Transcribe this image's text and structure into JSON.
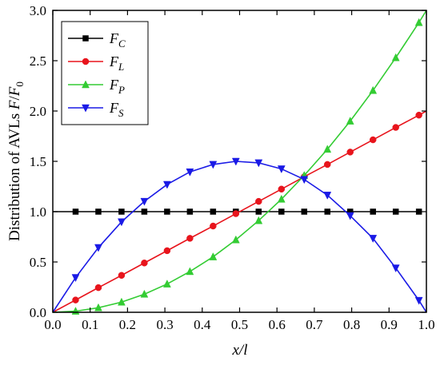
{
  "chart_data": {
    "type": "line",
    "xlabel": "x/l",
    "ylabel": "Distribution of AVLs F/F0",
    "xlim": [
      0.0,
      1.0
    ],
    "ylim": [
      0.0,
      3.0
    ],
    "xticks": [
      "0.0",
      "0.1",
      "0.2",
      "0.3",
      "0.4",
      "0.5",
      "0.6",
      "0.7",
      "0.8",
      "0.9",
      "1.0"
    ],
    "yticks": [
      "0.0",
      "0.5",
      "1.0",
      "1.5",
      "2.0",
      "2.5",
      "3.0"
    ],
    "grid": false,
    "legend_position": "top-left",
    "series": [
      {
        "name": "F_C",
        "color": "#000000",
        "marker": "square",
        "x": [
          0.0,
          0.061,
          0.122,
          0.184,
          0.245,
          0.306,
          0.367,
          0.429,
          0.49,
          0.551,
          0.612,
          0.673,
          0.735,
          0.796,
          0.857,
          0.918,
          0.98
        ],
        "y": [
          1.0,
          1.0,
          1.0,
          1.0,
          1.0,
          1.0,
          1.0,
          1.0,
          1.0,
          1.0,
          1.0,
          1.0,
          1.0,
          1.0,
          1.0,
          1.0,
          1.0
        ]
      },
      {
        "name": "F_L",
        "color": "#e8141c",
        "marker": "circle",
        "x": [
          0.0,
          0.061,
          0.122,
          0.184,
          0.245,
          0.306,
          0.367,
          0.429,
          0.49,
          0.551,
          0.612,
          0.673,
          0.735,
          0.796,
          0.857,
          0.918,
          0.98,
          1.0
        ],
        "y": [
          0.0,
          0.122,
          0.245,
          0.367,
          0.49,
          0.612,
          0.735,
          0.857,
          0.98,
          1.102,
          1.224,
          1.347,
          1.469,
          1.592,
          1.714,
          1.837,
          1.959,
          2.0
        ]
      },
      {
        "name": "F_P",
        "color": "#33cc33",
        "marker": "triangle-up",
        "x": [
          0.0,
          0.061,
          0.122,
          0.184,
          0.245,
          0.306,
          0.367,
          0.429,
          0.49,
          0.551,
          0.612,
          0.673,
          0.735,
          0.796,
          0.857,
          0.918,
          0.98,
          1.0
        ],
        "y": [
          0.0,
          0.011,
          0.045,
          0.101,
          0.18,
          0.281,
          0.405,
          0.551,
          0.72,
          0.911,
          1.124,
          1.36,
          1.62,
          1.9,
          2.204,
          2.53,
          2.879,
          3.0
        ]
      },
      {
        "name": "F_S",
        "color": "#1a1ae6",
        "marker": "triangle-down",
        "x": [
          0.0,
          0.061,
          0.122,
          0.184,
          0.245,
          0.306,
          0.367,
          0.429,
          0.49,
          0.551,
          0.612,
          0.673,
          0.735,
          0.796,
          0.857,
          0.918,
          0.98,
          1.0
        ],
        "y": [
          0.0,
          0.345,
          0.643,
          0.899,
          1.102,
          1.27,
          1.395,
          1.469,
          1.5,
          1.485,
          1.425,
          1.32,
          1.164,
          0.96,
          0.735,
          0.44,
          0.118,
          0.0
        ]
      }
    ]
  }
}
